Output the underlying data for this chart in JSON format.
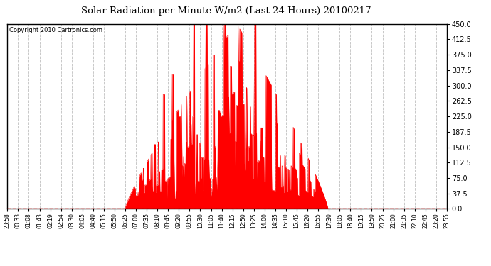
{
  "title": "Solar Radiation per Minute W/m2 (Last 24 Hours) 20100217",
  "copyright": "Copyright 2010 Cartronics.com",
  "yticks": [
    0.0,
    37.5,
    75.0,
    112.5,
    150.0,
    187.5,
    225.0,
    262.5,
    300.0,
    337.5,
    375.0,
    412.5,
    450.0
  ],
  "ymin": 0.0,
  "ymax": 450.0,
  "fill_color": "#FF0000",
  "line_color": "#FF0000",
  "background_color": "#FFFFFF",
  "dashed_line_color": "#FF0000",
  "grid_color": "#C8C8C8",
  "x_labels": [
    "23:58",
    "00:33",
    "01:08",
    "01:43",
    "02:19",
    "02:54",
    "03:30",
    "04:05",
    "04:40",
    "05:15",
    "05:50",
    "06:25",
    "07:00",
    "07:35",
    "08:10",
    "08:45",
    "09:20",
    "09:55",
    "10:30",
    "11:05",
    "11:40",
    "12:15",
    "12:50",
    "13:25",
    "14:00",
    "14:35",
    "15:10",
    "15:45",
    "16:20",
    "16:55",
    "17:30",
    "18:05",
    "18:40",
    "19:15",
    "19:50",
    "20:25",
    "21:00",
    "21:35",
    "22:10",
    "22:45",
    "23:20",
    "23:55"
  ],
  "total_points": 1440,
  "sunrise_idx": 385,
  "sunset_idx": 1050,
  "peak_idx": 750,
  "peak_val": 452
}
